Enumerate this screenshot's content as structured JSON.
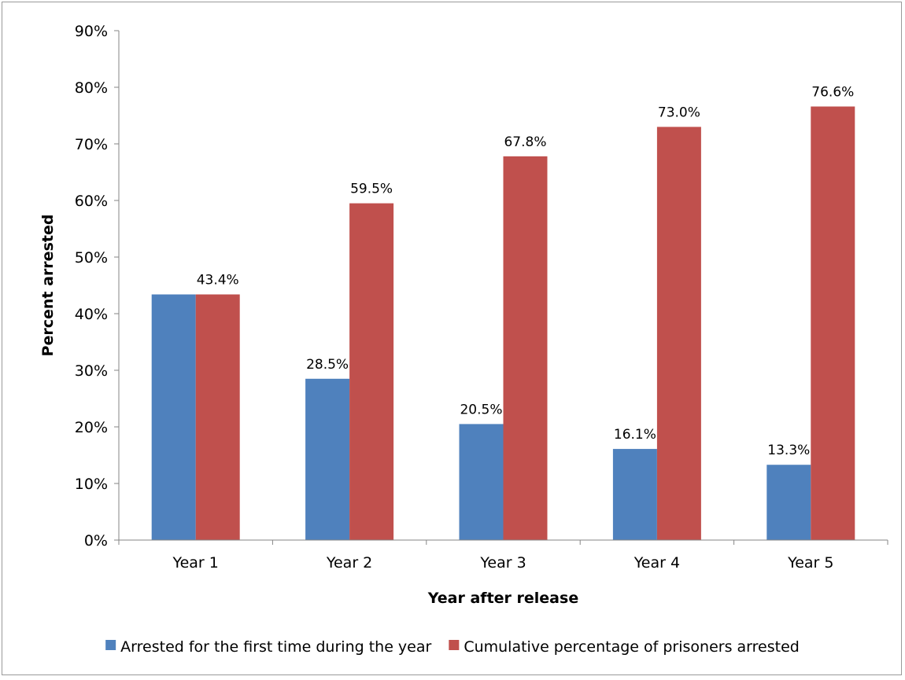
{
  "chart_data": {
    "type": "bar",
    "title": "",
    "xlabel": "Year after release",
    "ylabel": "Percent arrested",
    "ylim": [
      0,
      90
    ],
    "ytick_step": 10,
    "ytick_suffix": "%",
    "grid": false,
    "legend_position": "bottom",
    "categories": [
      "Year 1",
      "Year 2",
      "Year 3",
      "Year 4",
      "Year 5"
    ],
    "series": [
      {
        "name": "Arrested for the first time during the year",
        "color": "#4F81BD",
        "values": [
          43.4,
          28.5,
          20.5,
          16.1,
          13.3
        ],
        "labels": [
          "",
          "28.5%",
          "20.5%",
          "16.1%",
          "13.3%"
        ]
      },
      {
        "name": "Cumulative percentage of prisoners arrested",
        "color": "#C0504D",
        "values": [
          43.4,
          59.5,
          67.8,
          73.0,
          76.6
        ],
        "labels": [
          "43.4%",
          "59.5%",
          "67.8%",
          "73.0%",
          "76.6%"
        ]
      }
    ]
  }
}
